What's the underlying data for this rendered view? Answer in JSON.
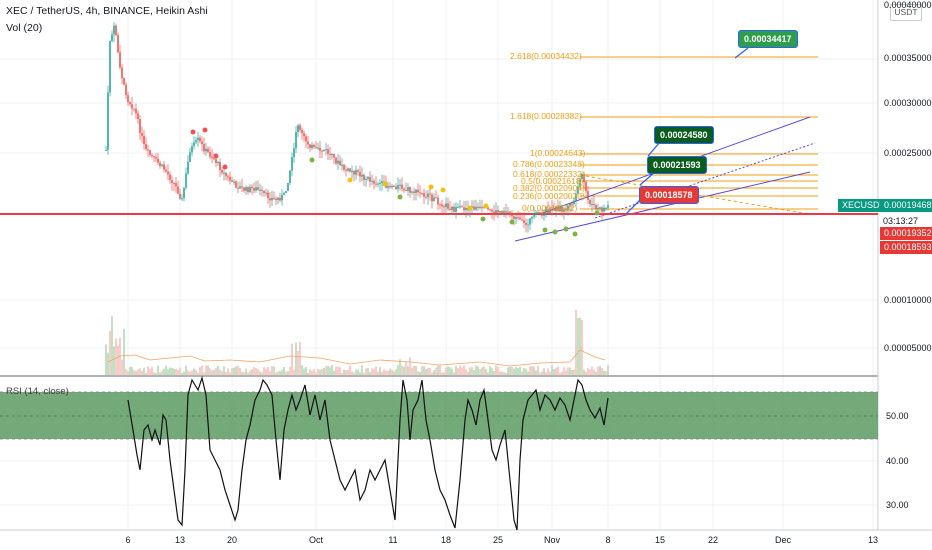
{
  "header": {
    "symbol_line": "XEC / TetherUS, 4h, BINANCE, Heikin Ashi",
    "volume_line": "Vol (20)",
    "rsi_line": "RSI (14, close)"
  },
  "currency_badge": "USDT",
  "price_scale": {
    "labels": [
      "0.00040000",
      "0.00035000",
      "0.00030000",
      "0.00025000",
      "0.00010000",
      "0.00005000"
    ]
  },
  "rsi_scale": {
    "labels": [
      "50.00",
      "40.00",
      "30.00"
    ]
  },
  "time_axis": {
    "labels": [
      "6",
      "13",
      "20",
      "Oct",
      "11",
      "18",
      "25",
      "Nov",
      "8",
      "15",
      "22",
      "Dec",
      "13"
    ]
  },
  "price_tags": {
    "symbol": "XECUSDT",
    "last_price": "0.00019468",
    "countdown": "03:13:27",
    "support_1": "0.00019352",
    "support_2": "0.00018593"
  },
  "fib_levels": [
    "2.618(0.00034432)",
    "1.618(0.00028382)",
    "1(0.00024643)",
    "0.786(0.00023348)",
    "0.618(0.00022332)",
    "0.5(0.00021618)",
    "0.382(0.00020904)",
    "0.236(0.00020020)",
    "0(0.00018592)"
  ],
  "callouts": {
    "target_top": "0.00034417",
    "target_mid": "0.00024580",
    "target_low": "0.00021593",
    "entry": "0.00018578"
  },
  "colors": {
    "up": "#26a69a",
    "down": "#ef5350",
    "support_line": "#f23645",
    "fib": "#f39c12",
    "channel": "#5b4bd6",
    "rsi_band": "#5c9a63",
    "callout_dark": "#0b5d1e",
    "callout_green": "#2e9e4a",
    "callout_red": "#e53935",
    "axis_tag": "#089981"
  }
}
